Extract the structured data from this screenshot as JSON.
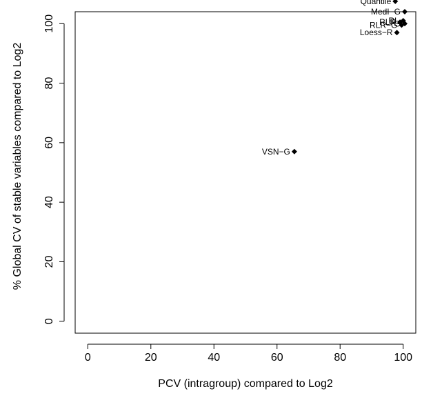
{
  "chart_data": {
    "type": "scatter",
    "xlabel": "PCV (intragroup) compared to Log2",
    "ylabel": "% Global CV of stable variables compared to Log2",
    "xlim": [
      -4,
      104
    ],
    "ylim": [
      -4,
      104
    ],
    "xticks": [
      0,
      20,
      40,
      60,
      80,
      100
    ],
    "yticks": [
      0,
      20,
      40,
      60,
      80,
      100
    ],
    "grid": false,
    "marker": "diamond",
    "points": [
      {
        "label": "Quantile",
        "x": 97.5,
        "y": 107.5
      },
      {
        "label": "MedI−G",
        "x": 100.5,
        "y": 104.0
      },
      {
        "label": "RLR−G",
        "x": 99.5,
        "y": 99.5
      },
      {
        "label": "Loess−R",
        "x": 98.0,
        "y": 97.0
      },
      {
        "label": "RLR",
        "x": 99.0,
        "y": 100.5
      },
      {
        "label": "RL",
        "x": 100.0,
        "y": 101.0
      },
      {
        "label": "−G",
        "x": 100.5,
        "y": 100.0
      },
      {
        "label": "VSN−G",
        "x": 65.5,
        "y": 57.0
      }
    ]
  }
}
